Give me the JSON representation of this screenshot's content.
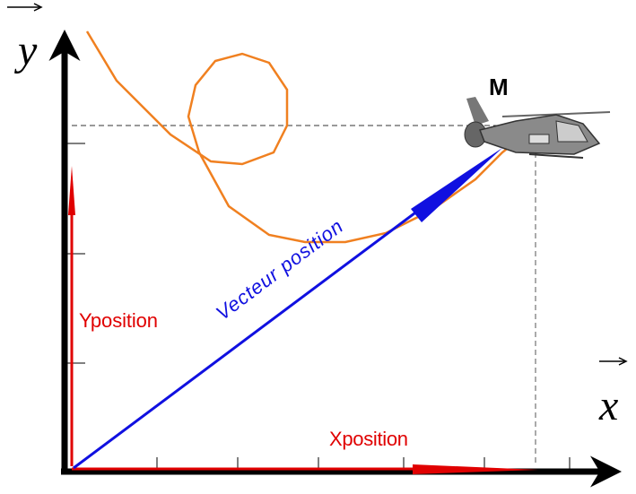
{
  "labels": {
    "y_axis": "y",
    "x_axis": "x",
    "point": "M",
    "vector": "Vecteur position",
    "y_component": "Yposition",
    "x_component": "Xposition"
  }
}
